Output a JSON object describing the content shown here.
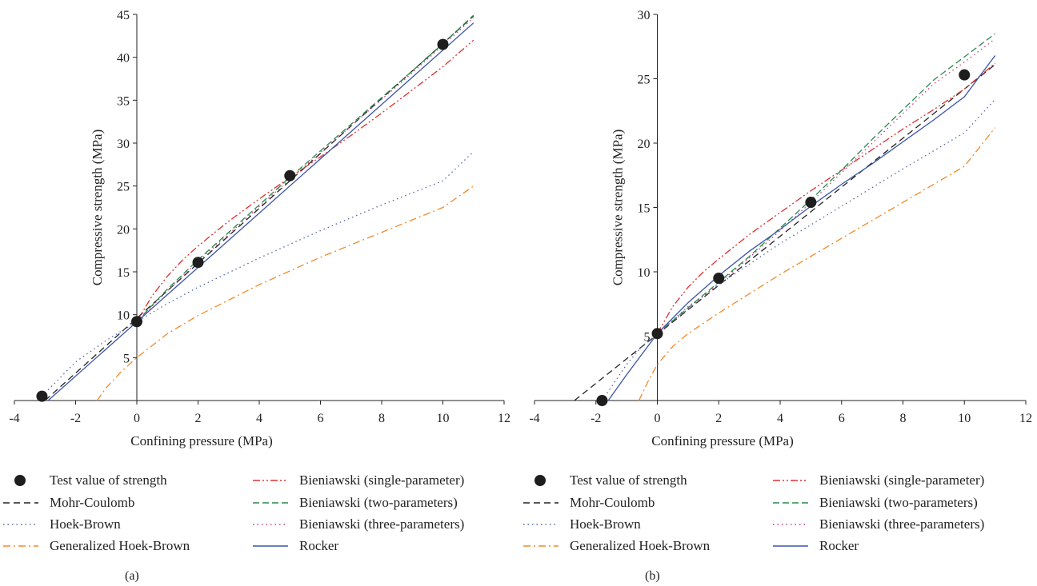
{
  "styles": {
    "Test value of strength": {
      "color": "#222222",
      "dash": "",
      "marker": true
    },
    "Mohr-Coulomb": {
      "color": "#222222",
      "dash": "8,5"
    },
    "Hoek-Brown": {
      "color": "#5566aa",
      "dash": "1.5,4"
    },
    "Generalized Hoek-Brown": {
      "color": "#f08a2a",
      "dash": "9,4,2,4"
    },
    "Bieniawski (single-parameter)": {
      "color": "#e03030",
      "dash": "9,3,2,3,2,3"
    },
    "Bieniawski (two-parameters)": {
      "color": "#2a8a4a",
      "dash": "8,4"
    },
    "Bieniawski (three-parameters)": {
      "color": "#c0408a",
      "dash": "1.5,4"
    },
    "Rocker": {
      "color": "#3a55a8",
      "dash": ""
    }
  },
  "legend": {
    "left_column": [
      "Test value of strength",
      "Mohr-Coulomb",
      "Hoek-Brown",
      "Generalized Hoek-Brown"
    ],
    "right_column": [
      "Bieniawski (single-parameter)",
      "Bieniawski (two-parameters)",
      "Bieniawski (three-parameters)",
      "Rocker"
    ]
  },
  "chart_data": [
    {
      "type": "line",
      "panel_label": "(a)",
      "xlabel": "Confining pressure (MPa)",
      "ylabel": "Compressive strength (MPa)",
      "xlim": [
        -4,
        12
      ],
      "ylim": [
        0,
        45
      ],
      "x_ticks": [
        -4,
        -2,
        0,
        2,
        4,
        6,
        8,
        10,
        12
      ],
      "y_ticks": [
        5,
        10,
        15,
        20,
        25,
        30,
        35,
        40,
        45
      ],
      "grid": false,
      "points": [
        [
          -3.1,
          0.5
        ],
        [
          0,
          9.2
        ],
        [
          2,
          16.1
        ],
        [
          5,
          26.2
        ],
        [
          10,
          41.5
        ]
      ],
      "series": [
        {
          "name": "Mohr-Coulomb",
          "x": [
            -3.0,
            11.0
          ],
          "y": [
            0.0,
            44.8
          ]
        },
        {
          "name": "Hoek-Brown",
          "x": [
            -3.1,
            -2,
            -1,
            0,
            1,
            2,
            4,
            6,
            8,
            10,
            11
          ],
          "y": [
            0.5,
            4.5,
            7.0,
            9.2,
            11.3,
            13.2,
            16.6,
            19.8,
            22.8,
            25.6,
            29.0
          ]
        },
        {
          "name": "Generalized Hoek-Brown",
          "x": [
            -1.3,
            -1,
            -0.5,
            0,
            1,
            2,
            4,
            6,
            8,
            10,
            11
          ],
          "y": [
            0.0,
            1.5,
            3.4,
            5.0,
            7.8,
            9.9,
            13.5,
            16.7,
            19.6,
            22.5,
            25.0
          ]
        },
        {
          "name": "Bieniawski (single-parameter)",
          "x": [
            0,
            0.5,
            1,
            1.5,
            2,
            3,
            4,
            5,
            6,
            7,
            8,
            9,
            10,
            11
          ],
          "y": [
            9.2,
            12.2,
            14.5,
            16.4,
            18.0,
            20.9,
            23.5,
            26.0,
            28.4,
            30.9,
            33.5,
            36.2,
            38.9,
            42.0
          ]
        },
        {
          "name": "Bieniawski (two-parameters)",
          "x": [
            0,
            1,
            2,
            3,
            4,
            5,
            6,
            7,
            8,
            9,
            10,
            11
          ],
          "y": [
            9.2,
            13.0,
            16.4,
            19.6,
            22.8,
            26.0,
            29.1,
            32.2,
            35.3,
            38.4,
            41.6,
            44.9
          ]
        },
        {
          "name": "Bieniawski (three-parameters)",
          "x": [
            0,
            1,
            2,
            3,
            4,
            5,
            6,
            7,
            8,
            9,
            10,
            11
          ],
          "y": [
            9.2,
            12.8,
            16.2,
            19.4,
            22.6,
            25.8,
            28.9,
            32.0,
            35.1,
            38.2,
            41.4,
            44.6
          ]
        },
        {
          "name": "Rocker",
          "x": [
            -2.9,
            11.0
          ],
          "y": [
            0.0,
            44.0
          ]
        }
      ]
    },
    {
      "type": "line",
      "panel_label": "(b)",
      "xlabel": "Confining pressure (MPa)",
      "ylabel": "Compressive strength (MPa)",
      "xlim": [
        -4,
        12
      ],
      "ylim": [
        0,
        30
      ],
      "x_ticks": [
        -4,
        -2,
        0,
        2,
        4,
        6,
        8,
        10,
        12
      ],
      "y_ticks": [
        5,
        10,
        15,
        20,
        25,
        30
      ],
      "grid": false,
      "points": [
        [
          -1.8,
          0.0
        ],
        [
          0,
          5.2
        ],
        [
          2,
          9.5
        ],
        [
          5,
          15.4
        ],
        [
          10,
          25.3
        ]
      ],
      "series": [
        {
          "name": "Mohr-Coulomb",
          "x": [
            -2.7,
            11.0
          ],
          "y": [
            0.0,
            26.1
          ]
        },
        {
          "name": "Hoek-Brown",
          "x": [
            -1.8,
            -1,
            -0.5,
            0,
            1,
            2,
            4,
            6,
            8,
            10,
            11
          ],
          "y": [
            0.0,
            2.8,
            4.2,
            5.2,
            7.3,
            9.0,
            12.2,
            15.1,
            18.0,
            20.8,
            23.4
          ]
        },
        {
          "name": "Generalized Hoek-Brown",
          "x": [
            -0.6,
            -0.3,
            0,
            0.5,
            1,
            2,
            4,
            6,
            8,
            10,
            11
          ],
          "y": [
            0.0,
            1.5,
            2.8,
            4.2,
            5.2,
            6.8,
            9.8,
            12.6,
            15.4,
            18.2,
            21.2
          ]
        },
        {
          "name": "Bieniawski (single-parameter)",
          "x": [
            0,
            0.5,
            1,
            1.5,
            2,
            3,
            4,
            5,
            6,
            7,
            8,
            9,
            10,
            11
          ],
          "y": [
            5.2,
            7.3,
            8.8,
            10.0,
            11.0,
            12.9,
            14.6,
            16.3,
            17.9,
            19.5,
            21.1,
            22.6,
            24.2,
            26.2
          ]
        },
        {
          "name": "Bieniawski (two-parameters)",
          "x": [
            0,
            1,
            2,
            3,
            4,
            5,
            6,
            7,
            8,
            9,
            10,
            11
          ],
          "y": [
            5.2,
            7.2,
            9.2,
            11.2,
            13.4,
            15.6,
            17.9,
            20.3,
            22.6,
            24.9,
            26.7,
            28.5
          ]
        },
        {
          "name": "Bieniawski (three-parameters)",
          "x": [
            0,
            1,
            2,
            3,
            4,
            5,
            6,
            7,
            8,
            9,
            10,
            11
          ],
          "y": [
            5.2,
            7.1,
            9.1,
            11.1,
            13.2,
            15.4,
            17.7,
            20.0,
            22.3,
            24.6,
            26.3,
            28.1
          ]
        },
        {
          "name": "Rocker",
          "x": [
            -1.6,
            -1,
            -0.5,
            0,
            1,
            2,
            3,
            4,
            5,
            6,
            7,
            8,
            9,
            10,
            11
          ],
          "y": [
            0.0,
            2.0,
            3.6,
            5.2,
            7.6,
            9.7,
            11.6,
            13.3,
            15.1,
            16.8,
            18.4,
            20.1,
            21.8,
            23.6,
            26.8
          ]
        }
      ]
    }
  ]
}
